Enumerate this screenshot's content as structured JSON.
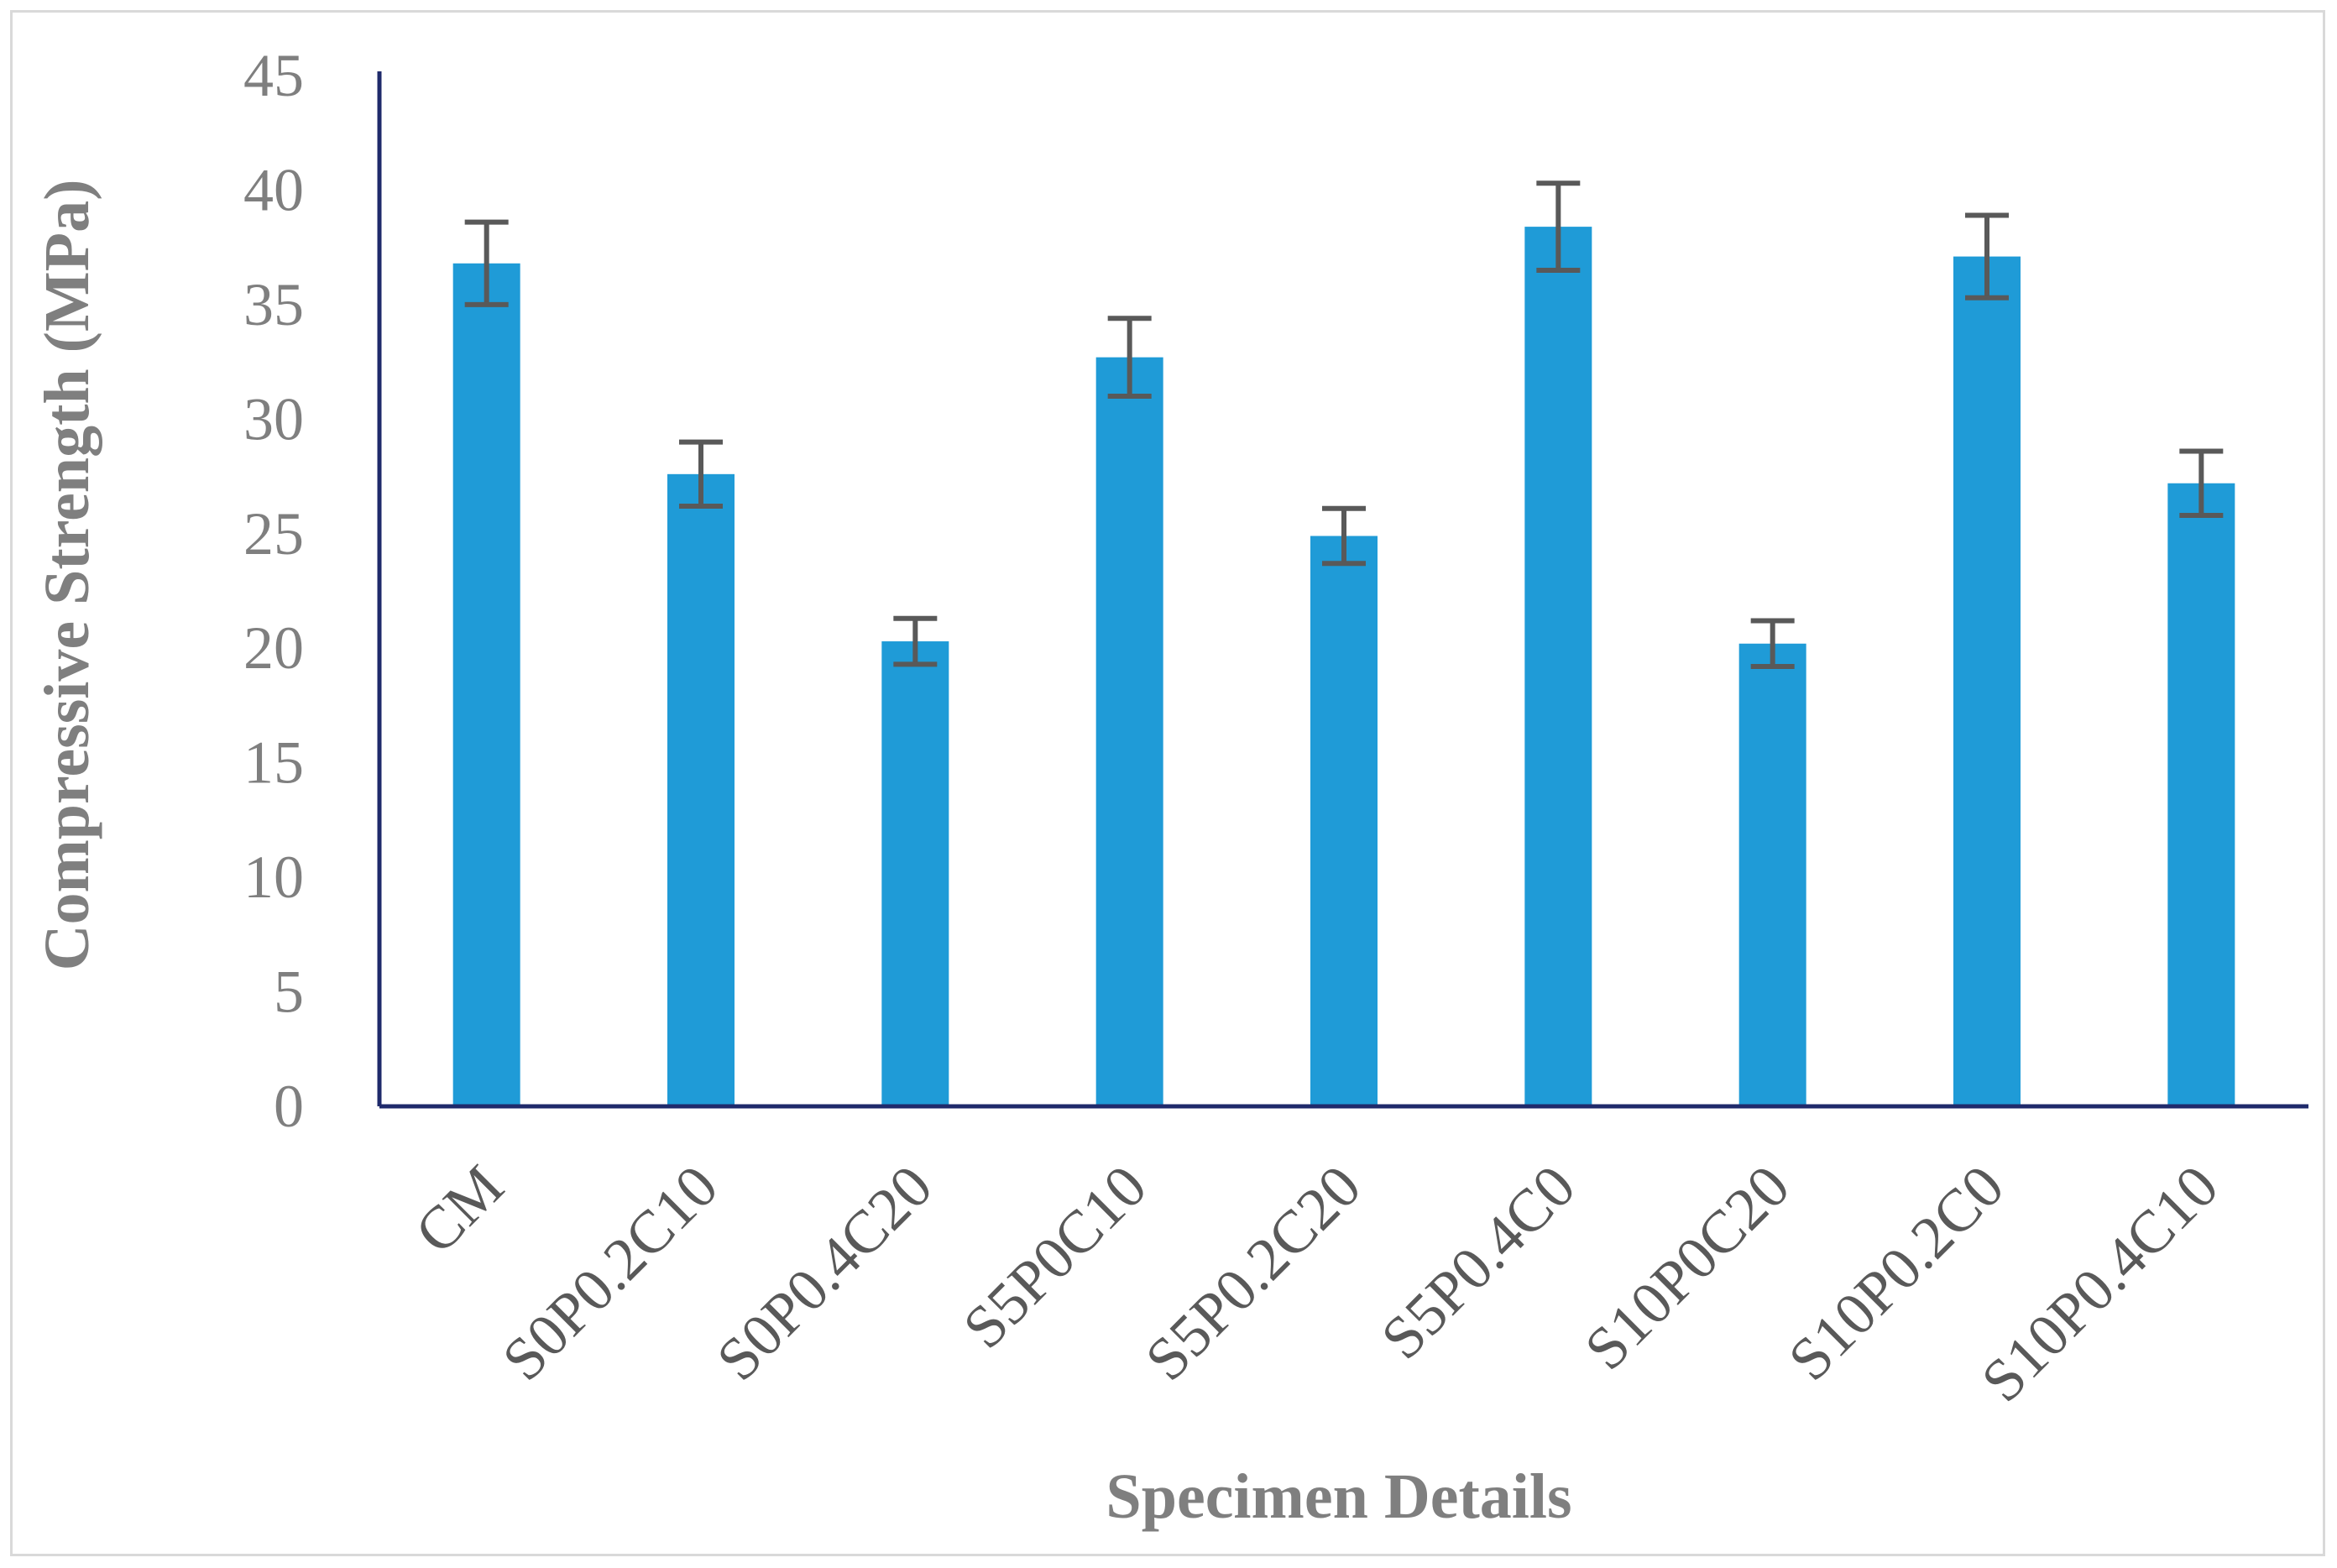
{
  "chart_data": {
    "type": "bar",
    "title": "",
    "xlabel": "Specimen Details",
    "ylabel": "Compressive Strength (MPa)",
    "ylim": [
      0,
      45
    ],
    "yticks": [
      0,
      5,
      10,
      15,
      20,
      25,
      30,
      35,
      40,
      45
    ],
    "grid": false,
    "legend": "none",
    "categories": [
      "CM",
      "S0P0.2C10",
      "S0P0.4C20",
      "S5P0C10",
      "S5P0.2C20",
      "S5P0.4C0",
      "S10P0C20",
      "S10P0.2C0",
      "S10P0.4C10"
    ],
    "series": [
      {
        "values": [
          36.8,
          27.6,
          20.3,
          32.7,
          24.9,
          38.4,
          20.2,
          37.1,
          27.2
        ],
        "error": [
          1.8,
          1.4,
          1.0,
          1.7,
          1.2,
          1.9,
          1.0,
          1.8,
          1.4
        ]
      }
    ],
    "colors": {
      "bar": "#1f9bd7",
      "error_bar": "#595959",
      "axis": "#1f2a6b"
    }
  }
}
